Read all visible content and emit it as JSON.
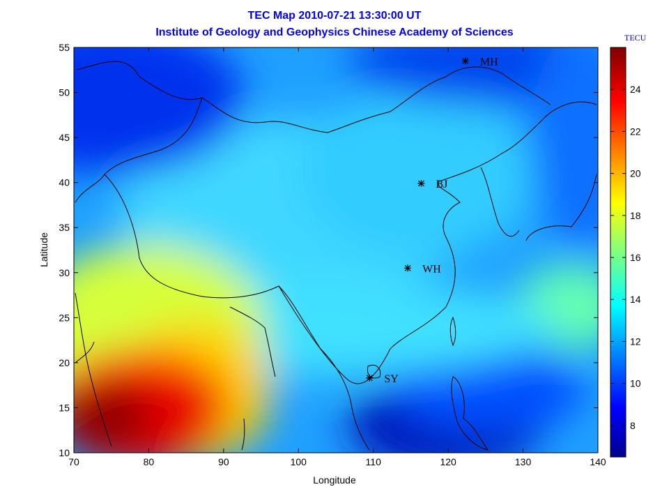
{
  "title_line1": "TEC Map 2010-07-21 13:30:00 UT",
  "title_line2": "Institute of Geology and Geophysics Chinese Academy of Sciences",
  "xlabel": "Longitude",
  "ylabel": "Latitude",
  "colorbar_unit": "TECU",
  "colors": {
    "title": "#0000ee"
  },
  "chart_data": {
    "type": "heatmap",
    "xlim": [
      70,
      140
    ],
    "ylim": [
      10,
      55
    ],
    "x_ticks": [
      "70",
      "80",
      "90",
      "100",
      "110",
      "120",
      "130",
      "140"
    ],
    "y_ticks": [
      "10",
      "15",
      "20",
      "25",
      "30",
      "35",
      "40",
      "45",
      "50",
      "55"
    ],
    "colorbar": {
      "range": [
        6.5,
        26
      ],
      "ticks": [
        "8",
        "10",
        "12",
        "14",
        "16",
        "18",
        "20",
        "22",
        "24"
      ],
      "colormap": "jet"
    },
    "stations": [
      {
        "name": "MH",
        "lon": 122.3,
        "lat": 53.5
      },
      {
        "name": "BJ",
        "lon": 116.4,
        "lat": 39.9
      },
      {
        "name": "WH",
        "lon": 114.6,
        "lat": 30.5
      },
      {
        "name": "SY",
        "lon": 109.5,
        "lat": 18.3
      }
    ],
    "tec_features": [
      {
        "lon": 74,
        "lat": 14,
        "tec": 26
      },
      {
        "lon": 82,
        "lat": 13,
        "tec": 24
      },
      {
        "lon": 74,
        "lat": 24,
        "tec": 18
      },
      {
        "lon": 90,
        "lat": 12,
        "tec": 18
      },
      {
        "lon": 75,
        "lat": 50,
        "tec": 8
      },
      {
        "lon": 122,
        "lat": 12,
        "tec": 7
      },
      {
        "lon": 115,
        "lat": 40,
        "tec": 14
      },
      {
        "lon": 138,
        "lat": 25,
        "tec": 15
      }
    ]
  }
}
